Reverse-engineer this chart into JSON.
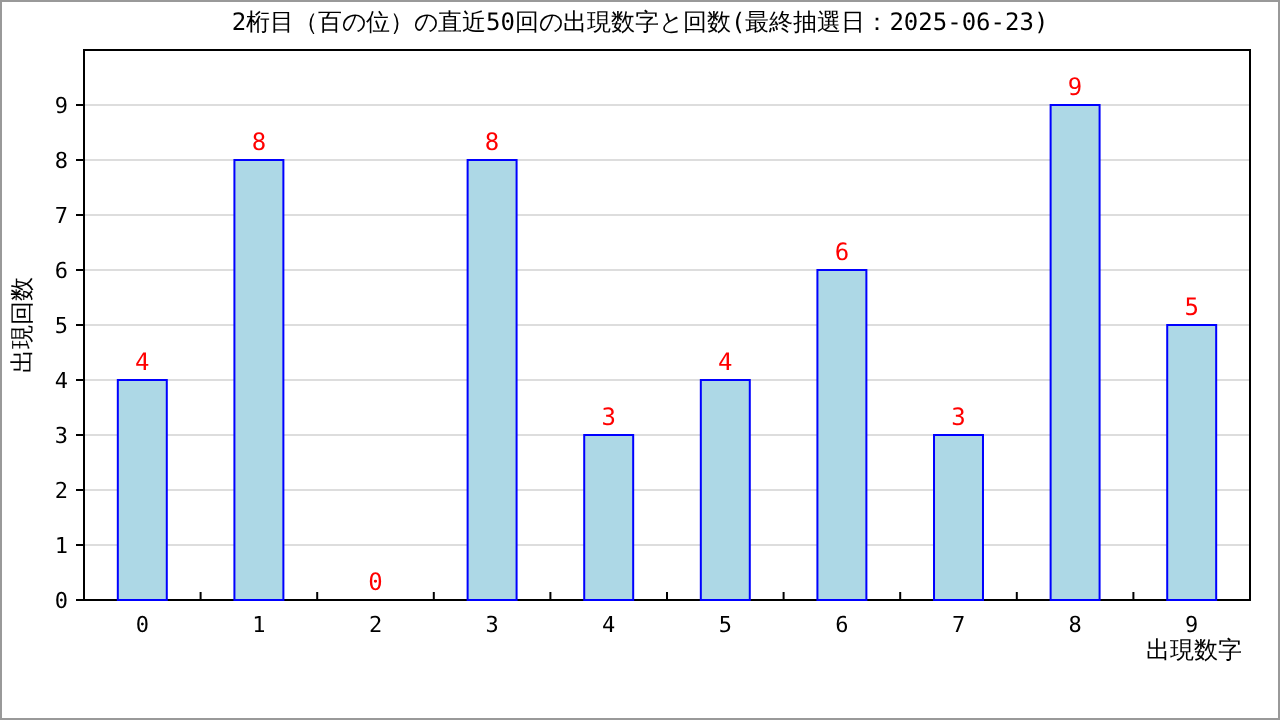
{
  "chart_data": {
    "type": "bar",
    "title": "2桁目（百の位）の直近50回の出現数字と回数(最終抽選日：2025-06-23)",
    "xlabel": "出現数字",
    "ylabel": "出現回数",
    "categories": [
      "0",
      "1",
      "2",
      "3",
      "4",
      "5",
      "6",
      "7",
      "8",
      "9"
    ],
    "series": [
      {
        "color": "#add8e6",
        "values": [
          4,
          8,
          0,
          8,
          3,
          4,
          6,
          3,
          9,
          5
        ]
      }
    ],
    "ylim": [
      0,
      10
    ],
    "yticks": [
      0,
      1,
      2,
      3,
      4,
      5,
      6,
      7,
      8,
      9
    ],
    "grid": "y",
    "data_labels": true
  }
}
